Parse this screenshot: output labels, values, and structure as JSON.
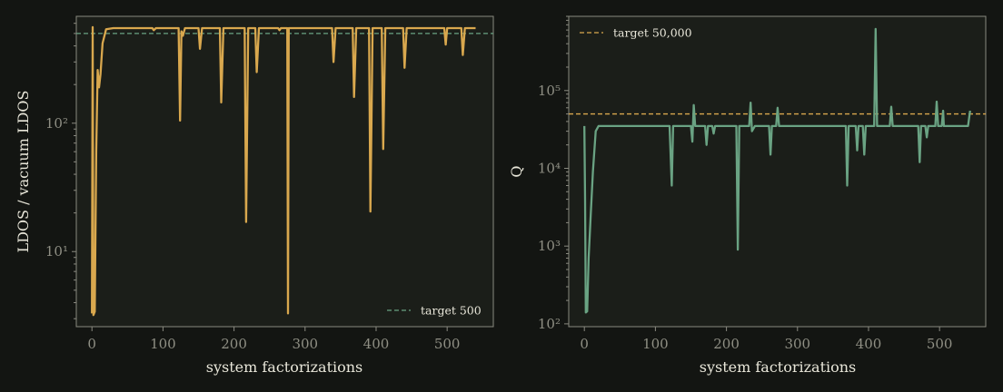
{
  "colors": {
    "background": "#131512",
    "axes_face": "#1b1e19",
    "ldos_line": "#d9a84e",
    "q_line": "#6aa383",
    "target_ldos_line": "#6aa383",
    "target_q_line": "#d9a84e",
    "tick_text": "#8f8f84",
    "label_text": "#e8e6d9"
  },
  "chart_data": [
    {
      "type": "line",
      "title": "",
      "xlabel": "system factorizations",
      "ylabel": "LDOS / vacuum LDOS",
      "yscale": "log",
      "xlim": [
        -22,
        565
      ],
      "ylim": [
        2.6,
        680
      ],
      "x_ticks": [
        0,
        100,
        200,
        300,
        400,
        500
      ],
      "x_tick_labels": [
        "0",
        "100",
        "200",
        "300",
        "400",
        "500"
      ],
      "y_ticks": [
        10,
        100
      ],
      "y_tick_labels": [
        "10¹",
        "10²"
      ],
      "grid": false,
      "legend": "lower-right",
      "reference_line": {
        "name": "target 500",
        "value": 500,
        "style": "dashed"
      },
      "series": [
        {
          "points": [
            [
              0,
              3.3
            ],
            [
              1,
              560
            ],
            [
              2,
              3.2
            ],
            [
              4,
              3.4
            ],
            [
              6,
              60
            ],
            [
              8,
              260
            ],
            [
              10,
              190
            ],
            [
              12,
              240
            ],
            [
              15,
              420
            ],
            [
              20,
              540
            ],
            [
              30,
              550
            ],
            [
              60,
              550
            ],
            [
              85,
              550
            ],
            [
              87,
              530
            ],
            [
              90,
              550
            ],
            [
              110,
              550
            ],
            [
              122,
              550
            ],
            [
              124,
              105
            ],
            [
              126,
              520
            ],
            [
              128,
              480
            ],
            [
              131,
              550
            ],
            [
              150,
              550
            ],
            [
              152,
              380
            ],
            [
              155,
              550
            ],
            [
              180,
              550
            ],
            [
              182,
              145
            ],
            [
              185,
              550
            ],
            [
              215,
              550
            ],
            [
              217,
              17
            ],
            [
              220,
              550
            ],
            [
              222,
              550
            ],
            [
              230,
              550
            ],
            [
              232,
              250
            ],
            [
              235,
              550
            ],
            [
              262,
              550
            ],
            [
              264,
              530
            ],
            [
              266,
              550
            ],
            [
              275,
              550
            ],
            [
              276,
              3.3
            ],
            [
              277,
              550
            ],
            [
              280,
              550
            ],
            [
              338,
              550
            ],
            [
              340,
              300
            ],
            [
              343,
              550
            ],
            [
              367,
              550
            ],
            [
              369,
              160
            ],
            [
              372,
              550
            ],
            [
              390,
              550
            ],
            [
              392,
              20.5
            ],
            [
              395,
              550
            ],
            [
              408,
              550
            ],
            [
              410,
              63
            ],
            [
              413,
              550
            ],
            [
              438,
              550
            ],
            [
              440,
              270
            ],
            [
              443,
              550
            ],
            [
              496,
              550
            ],
            [
              498,
              410
            ],
            [
              500,
              550
            ],
            [
              520,
              550
            ],
            [
              522,
              340
            ],
            [
              525,
              550
            ],
            [
              540,
              550
            ]
          ]
        }
      ]
    },
    {
      "type": "line",
      "title": "",
      "xlabel": "system factorizations",
      "ylabel": "Q",
      "yscale": "log",
      "xlim": [
        -22,
        565
      ],
      "ylim": [
        92,
        900000
      ],
      "x_ticks": [
        0,
        100,
        200,
        300,
        400,
        500
      ],
      "x_tick_labels": [
        "0",
        "100",
        "200",
        "300",
        "400",
        "500"
      ],
      "y_ticks": [
        100,
        1000,
        10000,
        100000
      ],
      "y_tick_labels": [
        "10²",
        "10³",
        "10⁴",
        "10⁵"
      ],
      "grid": false,
      "legend": "upper-left",
      "reference_line": {
        "name": "target 50,000",
        "value": 50000,
        "style": "dashed"
      },
      "series": [
        {
          "points": [
            [
              0,
              35000
            ],
            [
              1,
              4000
            ],
            [
              2,
              140
            ],
            [
              4,
              145
            ],
            [
              6,
              700
            ],
            [
              9,
              2500
            ],
            [
              12,
              9000
            ],
            [
              16,
              30000
            ],
            [
              20,
              35000
            ],
            [
              100,
              35000
            ],
            [
              120,
              35000
            ],
            [
              123,
              6000
            ],
            [
              125,
              35000
            ],
            [
              150,
              35000
            ],
            [
              152,
              22000
            ],
            [
              154,
              65000
            ],
            [
              156,
              35000
            ],
            [
              170,
              35000
            ],
            [
              172,
              20000
            ],
            [
              174,
              35000
            ],
            [
              180,
              35000
            ],
            [
              182,
              28000
            ],
            [
              184,
              35000
            ],
            [
              214,
              35000
            ],
            [
              216,
              900
            ],
            [
              218,
              35000
            ],
            [
              232,
              35000
            ],
            [
              234,
              70000
            ],
            [
              236,
              30000
            ],
            [
              240,
              35000
            ],
            [
              260,
              35000
            ],
            [
              262,
              15000
            ],
            [
              264,
              35000
            ],
            [
              270,
              35000
            ],
            [
              272,
              60000
            ],
            [
              274,
              35000
            ],
            [
              368,
              35000
            ],
            [
              370,
              6000
            ],
            [
              372,
              35000
            ],
            [
              382,
              35000
            ],
            [
              384,
              17000
            ],
            [
              386,
              35000
            ],
            [
              392,
              35000
            ],
            [
              394,
              15000
            ],
            [
              396,
              35000
            ],
            [
              408,
              35000
            ],
            [
              410,
              620000
            ],
            [
              412,
              35000
            ],
            [
              430,
              35000
            ],
            [
              432,
              62000
            ],
            [
              434,
              35000
            ],
            [
              470,
              35000
            ],
            [
              472,
              12000
            ],
            [
              474,
              35000
            ],
            [
              480,
              35000
            ],
            [
              482,
              25000
            ],
            [
              484,
              35000
            ],
            [
              494,
              35000
            ],
            [
              496,
              72000
            ],
            [
              498,
              35000
            ],
            [
              503,
              35000
            ],
            [
              505,
              55000
            ],
            [
              506,
              35000
            ],
            [
              540,
              35000
            ],
            [
              543,
              55000
            ]
          ]
        }
      ]
    }
  ]
}
